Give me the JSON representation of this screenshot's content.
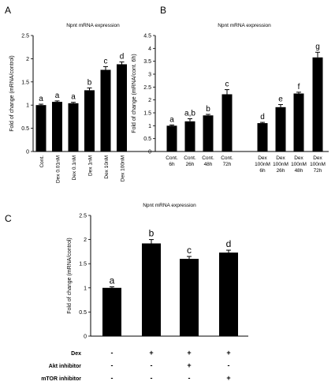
{
  "chart_data": [
    {
      "panel": "A",
      "type": "bar",
      "title": "Npnt mRNA expression",
      "ylabel": "Fold of change (mRNA/control)",
      "ylim": [
        0,
        2.5
      ],
      "yticks": [
        "0",
        "0.5",
        "1",
        "1.5",
        "2",
        "2.5"
      ],
      "categories": [
        "Cont.",
        "Dex 0.01nM",
        "Dex 0.1nM",
        "Dex 1nM",
        "Dex 10nM",
        "Dex 100nM"
      ],
      "values": [
        1.0,
        1.07,
        1.04,
        1.32,
        1.76,
        1.88
      ],
      "errors": [
        0.02,
        0.02,
        0.02,
        0.05,
        0.07,
        0.05
      ],
      "letters": [
        "a",
        "a",
        "a",
        "b",
        "c",
        "d"
      ]
    },
    {
      "panel": "B",
      "type": "bar",
      "title": "Npnt mRNA expression",
      "ylabel": "Fold of change (mRNA/cont. 6h)",
      "ylim": [
        0,
        4.5
      ],
      "yticks": [
        "0",
        "0.5",
        "1",
        "1.5",
        "2",
        "2.5",
        "3",
        "3.5",
        "4",
        "4.5"
      ],
      "categories": [
        [
          "Cont.",
          "6h"
        ],
        [
          "Cont.",
          "26h"
        ],
        [
          "Cont.",
          "48h"
        ],
        [
          "Cont.",
          "72h"
        ],
        [
          "Dex",
          "100nM",
          "6h"
        ],
        [
          "Dex",
          "100nM",
          "26h"
        ],
        [
          "Dex",
          "100nM",
          "48h"
        ],
        [
          "Dex",
          "100nM",
          "72h"
        ]
      ],
      "values": [
        1.0,
        1.17,
        1.4,
        2.22,
        1.1,
        1.72,
        2.25,
        3.65
      ],
      "errors": [
        0.03,
        0.1,
        0.04,
        0.18,
        0.03,
        0.1,
        0.05,
        0.2
      ],
      "letters": [
        "a",
        "a,b",
        "b",
        "c",
        "d",
        "e",
        "f",
        "g"
      ]
    },
    {
      "panel": "C",
      "type": "bar",
      "title": "Npnt mRNA expression",
      "ylabel": "Fold of change (mRNA/control)",
      "ylim": [
        0,
        2.5
      ],
      "yticks": [
        "0",
        "0.5",
        "1",
        "1.5",
        "2",
        "2.5"
      ],
      "values": [
        1.0,
        1.92,
        1.6,
        1.73
      ],
      "errors": [
        0.02,
        0.08,
        0.05,
        0.05
      ],
      "letters": [
        "a",
        "b",
        "c",
        "d"
      ],
      "treatments": [
        {
          "label": "Dex",
          "signs": [
            "-",
            "+",
            "+",
            "+"
          ]
        },
        {
          "label": "Akt inhibitor",
          "signs": [
            "-",
            "-",
            "+",
            "-"
          ]
        },
        {
          "label": "mTOR inhibitor",
          "signs": [
            "-",
            "-",
            "-",
            "+"
          ]
        }
      ]
    }
  ]
}
